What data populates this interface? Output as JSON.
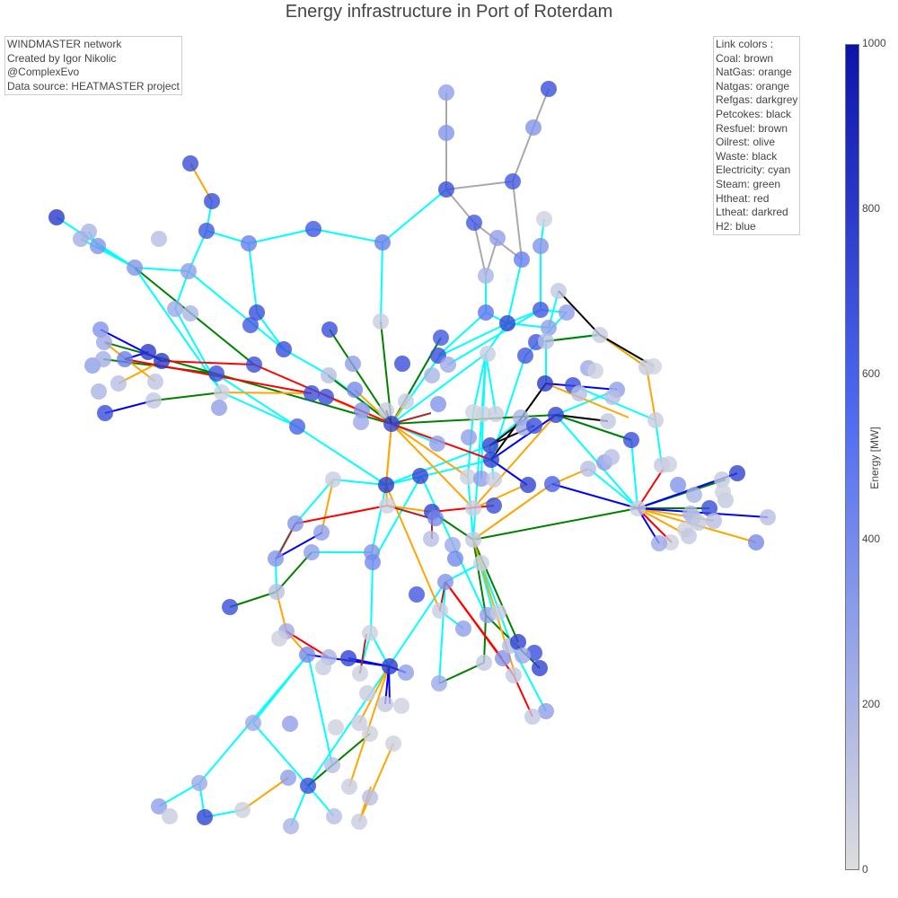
{
  "title": "Energy infrastructure in Port of Roterdam",
  "credits": [
    "WINDMASTER network",
    "Created by Igor Nikolic",
    "@ComplexEvo",
    "Data source: HEATMASTER project"
  ],
  "legend": {
    "heading": "Link colors :",
    "items": [
      {
        "label": "Coal: brown",
        "color": "#a52a2a"
      },
      {
        "label": "NatGas: orange",
        "color": "#ffa500"
      },
      {
        "label": "Natgas: orange",
        "color": "#ffa500"
      },
      {
        "label": "Refgas: darkgrey",
        "color": "#a9a9a9"
      },
      {
        "label": "Petcokes: black",
        "color": "#000000"
      },
      {
        "label": "Resfuel: brown",
        "color": "#a52a2a"
      },
      {
        "label": "Oilrest: olive",
        "color": "#808000"
      },
      {
        "label": "Waste: black",
        "color": "#000000"
      },
      {
        "label": "Electricity: cyan",
        "color": "#00ffff"
      },
      {
        "label": "Steam: green",
        "color": "#008000"
      },
      {
        "label": "Htheat: red",
        "color": "#ff0000"
      },
      {
        "label": "Ltheat: darkred",
        "color": "#8b0000"
      },
      {
        "label": "H2: blue",
        "color": "#0000ff"
      }
    ]
  },
  "colorbar": {
    "title": "Energy [MW]",
    "min": 0,
    "max": 1000,
    "ticks": [
      "0",
      "200",
      "400",
      "600",
      "800",
      "1000"
    ],
    "colors": [
      "#dddddd",
      "#4e6bf2",
      "#0d13a7"
    ]
  },
  "link_colors": {
    "cyan": "#00ffff",
    "green": "#008000",
    "orange": "#ffa500",
    "red": "#ff0000",
    "blue": "#0000ff",
    "black": "#000000",
    "darkgrey": "#a9a9a9",
    "brown": "#a52a2a"
  }
}
